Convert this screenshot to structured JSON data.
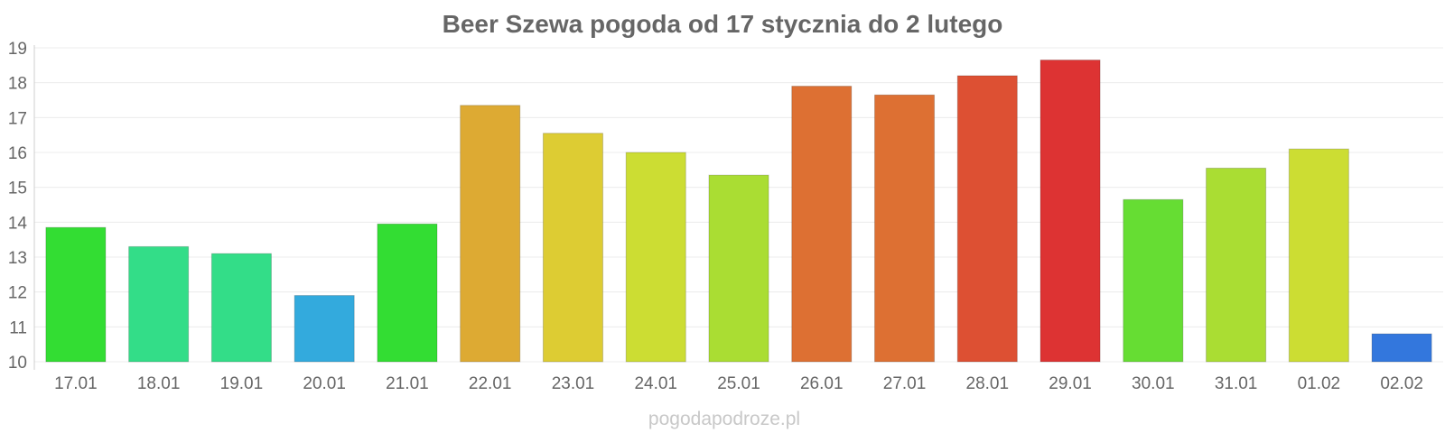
{
  "chart_data": {
    "type": "bar",
    "title": "Beer Szewa pogoda od 17 stycznia do 2 lutego",
    "xlabel": "",
    "ylabel": "",
    "categories": [
      "17.01",
      "18.01",
      "19.01",
      "20.01",
      "21.01",
      "22.01",
      "23.01",
      "24.01",
      "25.01",
      "26.01",
      "27.01",
      "28.01",
      "29.01",
      "30.01",
      "31.01",
      "01.02",
      "02.02"
    ],
    "values": [
      13.85,
      13.3,
      13.1,
      11.9,
      13.95,
      17.35,
      16.55,
      16.0,
      15.35,
      17.9,
      17.65,
      18.2,
      18.65,
      14.65,
      15.55,
      16.1,
      10.8
    ],
    "colors": [
      "#33dd33",
      "#33dd88",
      "#33dd88",
      "#33aadd",
      "#33dd33",
      "#ddaa33",
      "#ddcc33",
      "#ccdd33",
      "#aadd33",
      "#dd7033",
      "#dd7033",
      "#dd5033",
      "#dd3333",
      "#66dd33",
      "#aadd33",
      "#ccdd33",
      "#3377dd"
    ],
    "yticks": [
      "10",
      "11",
      "12",
      "13",
      "14",
      "15",
      "16",
      "17",
      "18",
      "19"
    ],
    "ylim": [
      10,
      19
    ],
    "grid": true,
    "legend": "none"
  },
  "watermark": "pogodapodroze.pl"
}
